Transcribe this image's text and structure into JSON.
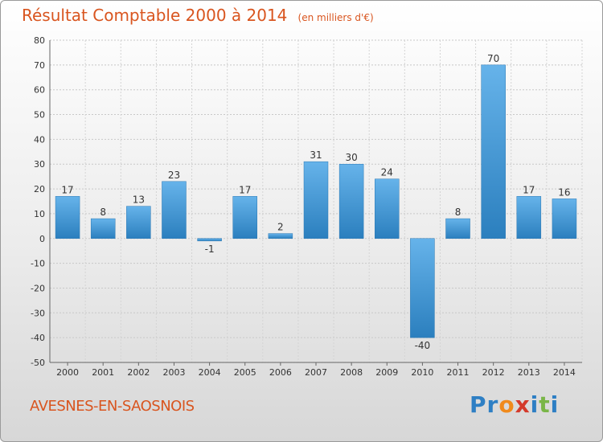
{
  "title": "Résultat Comptable 2000 à 2014",
  "subtitle": "(en milliers d'€)",
  "commune": "AVESNES-EN-SAOSNOIS",
  "logo_letters": [
    "P",
    "r",
    "o",
    "x",
    "i",
    "t",
    "i"
  ],
  "logo_colors": [
    "#2e7fc4",
    "#2e7fc4",
    "#f08a1c",
    "#d43a2b",
    "#2e7fc4",
    "#7ab648",
    "#2e7fc4"
  ],
  "colors": {
    "bar_top": "#66b3ea",
    "bar_bottom": "#2b7fbe",
    "text_accent": "#d9551f"
  },
  "chart_data": {
    "type": "bar",
    "title": "Résultat Comptable 2000 à 2014",
    "subtitle": "(en milliers d'€)",
    "xlabel": "",
    "ylabel": "",
    "categories": [
      "2000",
      "2001",
      "2002",
      "2003",
      "2004",
      "2005",
      "2006",
      "2007",
      "2008",
      "2009",
      "2010",
      "2011",
      "2012",
      "2013",
      "2014"
    ],
    "values": [
      17,
      8,
      13,
      23,
      -1,
      17,
      2,
      31,
      30,
      24,
      -40,
      8,
      70,
      17,
      16
    ],
    "ylim": [
      -50,
      80
    ],
    "yticks": [
      80,
      70,
      60,
      50,
      40,
      30,
      20,
      10,
      0,
      -10,
      -20,
      -30,
      -40,
      -50
    ],
    "grid": true,
    "legend": "none"
  }
}
